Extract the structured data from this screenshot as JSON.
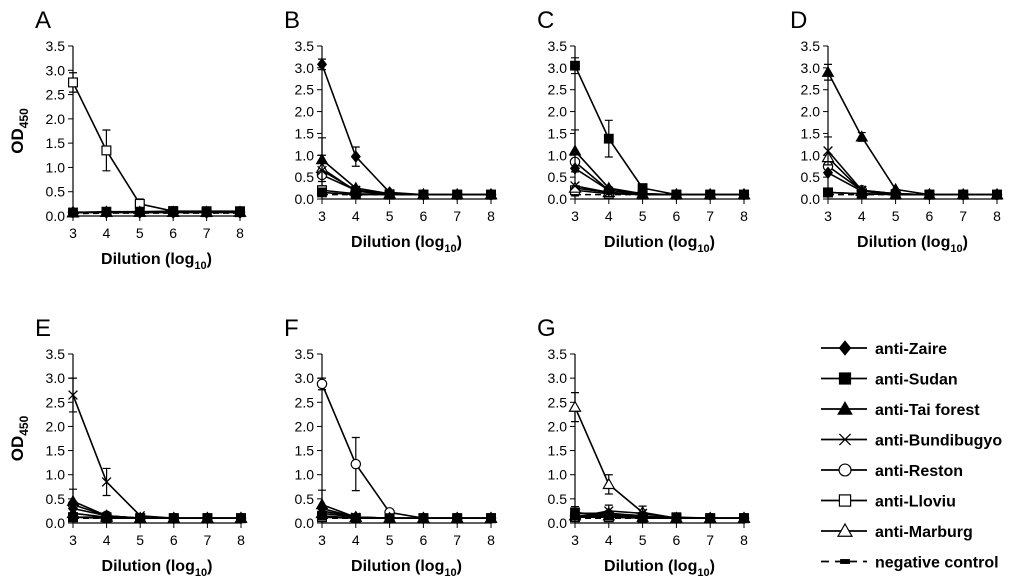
{
  "figure": {
    "y_axis_label": "OD",
    "y_axis_subscript": "450",
    "x_axis_label_prefix": "Dilution (log",
    "x_axis_label_subscript": "10",
    "x_axis_label_suffix": ")"
  },
  "legend": [
    {
      "name": "anti-Zaire",
      "marker": "diamond-filled"
    },
    {
      "name": "anti-Sudan",
      "marker": "square-filled"
    },
    {
      "name": "anti-Tai forest",
      "marker": "triangle-filled"
    },
    {
      "name": "anti-Bundibugyo",
      "marker": "cross-x"
    },
    {
      "name": "anti-Reston",
      "marker": "circle-open"
    },
    {
      "name": "anti-Lloviu",
      "marker": "square-open"
    },
    {
      "name": "anti-Marburg",
      "marker": "triangle-open"
    },
    {
      "name": "negative control",
      "marker": "dash"
    }
  ],
  "chart_data": [
    {
      "panel": "A",
      "type": "line",
      "x": [
        3,
        4,
        5,
        6,
        7,
        8
      ],
      "xlim": [
        3,
        8
      ],
      "ylim": [
        0,
        3.5
      ],
      "yticks": [
        "0.0",
        "0.5",
        "1.0",
        "1.5",
        "2.0",
        "2.5",
        "3.0",
        "3.5"
      ],
      "xticks": [
        "3",
        "4",
        "5",
        "6",
        "7",
        "8"
      ],
      "show_ylabel": true,
      "series": [
        {
          "name": "anti-Zaire",
          "values": [
            0.08,
            0.07,
            0.07,
            0.07,
            0.07,
            0.07
          ]
        },
        {
          "name": "anti-Sudan",
          "values": [
            0.07,
            0.09,
            0.09,
            0.1,
            0.1,
            0.1
          ]
        },
        {
          "name": "anti-Tai forest",
          "values": [
            0.07,
            0.08,
            0.08,
            0.08,
            0.08,
            0.08
          ]
        },
        {
          "name": "anti-Bundibugyo",
          "values": [
            0.08,
            0.08,
            0.08,
            0.08,
            0.08,
            0.08
          ]
        },
        {
          "name": "anti-Reston",
          "values": [
            0.07,
            0.08,
            0.08,
            0.08,
            0.08,
            0.08
          ]
        },
        {
          "name": "anti-Lloviu",
          "values": [
            2.75,
            1.35,
            0.25,
            0.1,
            0.08,
            0.08
          ],
          "errors": [
            0.2,
            0.42,
            0.1,
            0,
            0,
            0
          ]
        },
        {
          "name": "anti-Marburg",
          "values": [
            0.07,
            0.08,
            0.08,
            0.08,
            0.08,
            0.08
          ]
        },
        {
          "name": "negative control",
          "values": [
            0.05,
            0.06,
            0.06,
            0.06,
            0.06,
            0.06
          ]
        }
      ]
    },
    {
      "panel": "B",
      "type": "line",
      "x": [
        3,
        4,
        5,
        6,
        7,
        8
      ],
      "xlim": [
        3,
        8
      ],
      "ylim": [
        0,
        3.5
      ],
      "yticks": [
        "0.0",
        "0.5",
        "1.0",
        "1.5",
        "2.0",
        "2.5",
        "3.0",
        "3.5"
      ],
      "xticks": [
        "3",
        "4",
        "5",
        "6",
        "7",
        "8"
      ],
      "show_ylabel": false,
      "series": [
        {
          "name": "anti-Zaire",
          "values": [
            3.08,
            0.97,
            0.15,
            0.1,
            0.1,
            0.1
          ],
          "errors": [
            0.12,
            0.22,
            0,
            0,
            0,
            0
          ]
        },
        {
          "name": "anti-Sudan",
          "values": [
            0.15,
            0.1,
            0.1,
            0.1,
            0.1,
            0.1
          ]
        },
        {
          "name": "anti-Tai forest",
          "values": [
            0.9,
            0.25,
            0.12,
            0.1,
            0.1,
            0.1
          ],
          "errors": [
            0.5,
            0,
            0,
            0,
            0,
            0
          ]
        },
        {
          "name": "anti-Bundibugyo",
          "values": [
            0.65,
            0.2,
            0.12,
            0.1,
            0.1,
            0.1
          ],
          "errors": [
            0.35,
            0,
            0,
            0,
            0,
            0
          ]
        },
        {
          "name": "anti-Reston",
          "values": [
            0.55,
            0.2,
            0.12,
            0.1,
            0.1,
            0.1
          ]
        },
        {
          "name": "anti-Lloviu",
          "values": [
            0.2,
            0.12,
            0.1,
            0.1,
            0.1,
            0.1
          ]
        },
        {
          "name": "anti-Marburg",
          "values": [
            0.7,
            0.18,
            0.1,
            0.1,
            0.1,
            0.1
          ]
        },
        {
          "name": "negative control",
          "values": [
            0.1,
            0.1,
            0.1,
            0.1,
            0.1,
            0.1
          ]
        }
      ]
    },
    {
      "panel": "C",
      "type": "line",
      "x": [
        3,
        4,
        5,
        6,
        7,
        8
      ],
      "xlim": [
        3,
        8
      ],
      "ylim": [
        0,
        3.5
      ],
      "yticks": [
        "0.0",
        "0.5",
        "1.0",
        "1.5",
        "2.0",
        "2.5",
        "3.0",
        "3.5"
      ],
      "xticks": [
        "3",
        "4",
        "5",
        "6",
        "7",
        "8"
      ],
      "show_ylabel": false,
      "series": [
        {
          "name": "anti-Zaire",
          "values": [
            0.7,
            0.2,
            0.12,
            0.1,
            0.1,
            0.1
          ]
        },
        {
          "name": "anti-Sudan",
          "values": [
            3.05,
            1.38,
            0.25,
            0.1,
            0.1,
            0.1
          ],
          "errors": [
            0.18,
            0.42,
            0.05,
            0,
            0,
            0
          ]
        },
        {
          "name": "anti-Tai forest",
          "values": [
            1.1,
            0.25,
            0.12,
            0.1,
            0.1,
            0.1
          ],
          "errors": [
            0.48,
            0,
            0,
            0,
            0,
            0
          ]
        },
        {
          "name": "anti-Bundibugyo",
          "values": [
            0.3,
            0.15,
            0.1,
            0.1,
            0.1,
            0.1
          ]
        },
        {
          "name": "anti-Reston",
          "values": [
            0.85,
            0.2,
            0.12,
            0.1,
            0.1,
            0.1
          ]
        },
        {
          "name": "anti-Lloviu",
          "values": [
            0.2,
            0.12,
            0.1,
            0.1,
            0.1,
            0.1
          ]
        },
        {
          "name": "anti-Marburg",
          "values": [
            0.25,
            0.15,
            0.1,
            0.1,
            0.1,
            0.1
          ]
        },
        {
          "name": "negative control",
          "values": [
            0.1,
            0.1,
            0.1,
            0.1,
            0.1,
            0.1
          ]
        }
      ]
    },
    {
      "panel": "D",
      "type": "line",
      "x": [
        3,
        4,
        5,
        6,
        7,
        8
      ],
      "xlim": [
        3,
        8
      ],
      "ylim": [
        0,
        3.5
      ],
      "yticks": [
        "0.0",
        "0.5",
        "1.0",
        "1.5",
        "2.0",
        "2.5",
        "3.0",
        "3.5"
      ],
      "xticks": [
        "3",
        "4",
        "5",
        "6",
        "7",
        "8"
      ],
      "show_ylabel": false,
      "series": [
        {
          "name": "anti-Zaire",
          "values": [
            0.6,
            0.18,
            0.12,
            0.1,
            0.1,
            0.1
          ]
        },
        {
          "name": "anti-Sudan",
          "values": [
            0.15,
            0.12,
            0.1,
            0.1,
            0.1,
            0.1
          ]
        },
        {
          "name": "anti-Tai forest",
          "values": [
            2.9,
            1.42,
            0.22,
            0.1,
            0.1,
            0.1
          ],
          "errors": [
            0.18,
            0.1,
            0,
            0,
            0,
            0
          ]
        },
        {
          "name": "anti-Bundibugyo",
          "values": [
            1.1,
            0.2,
            0.12,
            0.1,
            0.1,
            0.1
          ],
          "errors": [
            0.32,
            0,
            0,
            0,
            0,
            0
          ]
        },
        {
          "name": "anti-Reston",
          "values": [
            0.75,
            0.2,
            0.12,
            0.1,
            0.1,
            0.1
          ]
        },
        {
          "name": "anti-Lloviu",
          "values": [
            0.15,
            0.12,
            0.1,
            0.1,
            0.1,
            0.1
          ]
        },
        {
          "name": "anti-Marburg",
          "values": [
            0.95,
            0.18,
            0.1,
            0.1,
            0.1,
            0.1
          ]
        },
        {
          "name": "negative control",
          "values": [
            0.1,
            0.1,
            0.1,
            0.1,
            0.1,
            0.1
          ]
        }
      ]
    },
    {
      "panel": "E",
      "type": "line",
      "x": [
        3,
        4,
        5,
        6,
        7,
        8
      ],
      "xlim": [
        3,
        8
      ],
      "ylim": [
        0,
        3.5
      ],
      "yticks": [
        "0.0",
        "0.5",
        "1.0",
        "1.5",
        "2.0",
        "2.5",
        "3.0",
        "3.5"
      ],
      "xticks": [
        "3",
        "4",
        "5",
        "6",
        "7",
        "8"
      ],
      "show_ylabel": true,
      "series": [
        {
          "name": "anti-Zaire",
          "values": [
            0.3,
            0.15,
            0.1,
            0.1,
            0.1,
            0.1
          ]
        },
        {
          "name": "anti-Sudan",
          "values": [
            0.12,
            0.12,
            0.1,
            0.1,
            0.1,
            0.1
          ]
        },
        {
          "name": "anti-Tai forest",
          "values": [
            0.45,
            0.15,
            0.1,
            0.1,
            0.1,
            0.1
          ],
          "errors": [
            0.25,
            0,
            0,
            0,
            0,
            0
          ]
        },
        {
          "name": "anti-Bundibugyo",
          "values": [
            2.65,
            0.85,
            0.15,
            0.1,
            0.1,
            0.1
          ],
          "errors": [
            0.35,
            0.28,
            0,
            0,
            0,
            0
          ]
        },
        {
          "name": "anti-Reston",
          "values": [
            0.38,
            0.15,
            0.1,
            0.1,
            0.1,
            0.1
          ]
        },
        {
          "name": "anti-Lloviu",
          "values": [
            0.12,
            0.1,
            0.1,
            0.1,
            0.1,
            0.1
          ]
        },
        {
          "name": "anti-Marburg",
          "values": [
            0.2,
            0.12,
            0.1,
            0.1,
            0.1,
            0.1
          ]
        },
        {
          "name": "negative control",
          "values": [
            0.1,
            0.1,
            0.1,
            0.1,
            0.1,
            0.1
          ]
        }
      ]
    },
    {
      "panel": "F",
      "type": "line",
      "x": [
        3,
        4,
        5,
        6,
        7,
        8
      ],
      "xlim": [
        3,
        8
      ],
      "ylim": [
        0,
        3.5
      ],
      "yticks": [
        "0.0",
        "0.5",
        "1.0",
        "1.5",
        "2.0",
        "2.5",
        "3.0",
        "3.5"
      ],
      "xticks": [
        "3",
        "4",
        "5",
        "6",
        "7",
        "8"
      ],
      "show_ylabel": false,
      "series": [
        {
          "name": "anti-Zaire",
          "values": [
            0.3,
            0.12,
            0.1,
            0.1,
            0.1,
            0.1
          ]
        },
        {
          "name": "anti-Sudan",
          "values": [
            0.15,
            0.1,
            0.1,
            0.1,
            0.1,
            0.1
          ]
        },
        {
          "name": "anti-Tai forest",
          "values": [
            0.38,
            0.12,
            0.1,
            0.1,
            0.1,
            0.1
          ],
          "errors": [
            0.3,
            0,
            0,
            0,
            0,
            0
          ]
        },
        {
          "name": "anti-Bundibugyo",
          "values": [
            0.25,
            0.12,
            0.1,
            0.1,
            0.1,
            0.1
          ]
        },
        {
          "name": "anti-Reston",
          "values": [
            2.88,
            1.22,
            0.22,
            0.1,
            0.1,
            0.1
          ],
          "errors": [
            0.12,
            0.55,
            0.05,
            0,
            0,
            0
          ]
        },
        {
          "name": "anti-Lloviu",
          "values": [
            0.12,
            0.1,
            0.1,
            0.1,
            0.1,
            0.1
          ]
        },
        {
          "name": "anti-Marburg",
          "values": [
            0.2,
            0.12,
            0.1,
            0.1,
            0.1,
            0.1
          ]
        },
        {
          "name": "negative control",
          "values": [
            0.1,
            0.1,
            0.1,
            0.1,
            0.1,
            0.1
          ]
        }
      ]
    },
    {
      "panel": "G",
      "type": "line",
      "x": [
        3,
        4,
        5,
        6,
        7,
        8
      ],
      "xlim": [
        3,
        8
      ],
      "ylim": [
        0,
        3.5
      ],
      "yticks": [
        "0.0",
        "0.5",
        "1.0",
        "1.5",
        "2.0",
        "2.5",
        "3.0",
        "3.5"
      ],
      "xticks": [
        "3",
        "4",
        "5",
        "6",
        "7",
        "8"
      ],
      "show_ylabel": false,
      "series": [
        {
          "name": "anti-Zaire",
          "values": [
            0.2,
            0.2,
            0.15,
            0.1,
            0.1,
            0.1
          ]
        },
        {
          "name": "anti-Sudan",
          "values": [
            0.22,
            0.15,
            0.12,
            0.12,
            0.1,
            0.1
          ],
          "errors": [
            0.12,
            0,
            0,
            0,
            0,
            0
          ]
        },
        {
          "name": "anti-Tai forest",
          "values": [
            0.15,
            0.15,
            0.12,
            0.1,
            0.1,
            0.1
          ]
        },
        {
          "name": "anti-Bundibugyo",
          "values": [
            0.12,
            0.25,
            0.2,
            0.1,
            0.1,
            0.1
          ],
          "errors": [
            0,
            0.12,
            0.15,
            0,
            0,
            0
          ]
        },
        {
          "name": "anti-Reston",
          "values": [
            0.15,
            0.18,
            0.12,
            0.1,
            0.1,
            0.1
          ]
        },
        {
          "name": "anti-Lloviu",
          "values": [
            0.12,
            0.12,
            0.1,
            0.1,
            0.1,
            0.1
          ]
        },
        {
          "name": "anti-Marburg",
          "values": [
            2.4,
            0.8,
            0.22,
            0.1,
            0.1,
            0.1
          ],
          "errors": [
            0.3,
            0.2,
            0.05,
            0,
            0,
            0
          ]
        },
        {
          "name": "negative control",
          "values": [
            0.1,
            0.1,
            0.1,
            0.1,
            0.1,
            0.1
          ]
        }
      ]
    }
  ]
}
